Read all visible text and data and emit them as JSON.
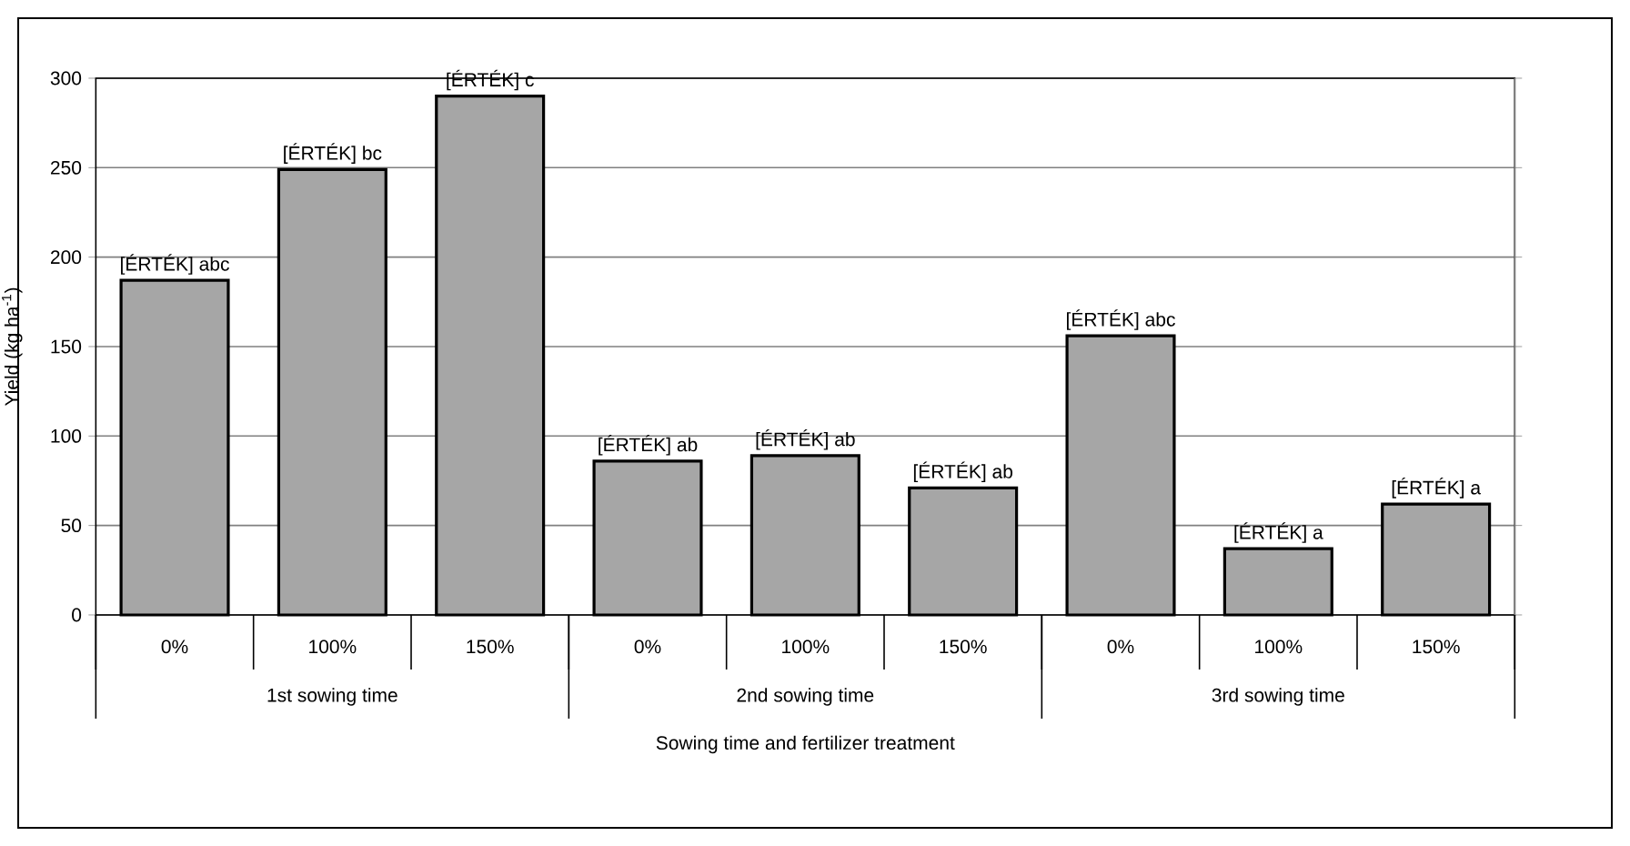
{
  "chart_data": {
    "type": "bar",
    "xlabel": "Sowing time and fertilizer treatment",
    "ylabel": "Yield (kg ha$^{-1}$)",
    "categories": [
      "0%",
      "100%",
      "150%",
      "0%",
      "100%",
      "150%",
      "0%",
      "100%",
      "150%"
    ],
    "values": [
      187,
      249,
      290,
      86,
      89,
      71,
      156,
      37,
      62
    ],
    "value_labels": [
      "[ÉRTÉK]  abc",
      "[ÉRTÉK]  bc",
      "[ÉRTÉK]  c",
      "[ÉRTÉK]  ab",
      "[ÉRTÉK]  ab",
      "[ÉRTÉK]  ab",
      "[ÉRTÉK]  abc",
      "[ÉRTÉK]  a",
      "[ÉRTÉK]  a"
    ],
    "color": "#a6a6a6",
    "ylim": [
      0,
      300
    ],
    "yticks": [
      0,
      50,
      100,
      150,
      200,
      250,
      300
    ],
    "grid": "y",
    "annotations": [
      "1st sowing time",
      "2nd sowing time",
      "3rd sowing time"
    ]
  }
}
